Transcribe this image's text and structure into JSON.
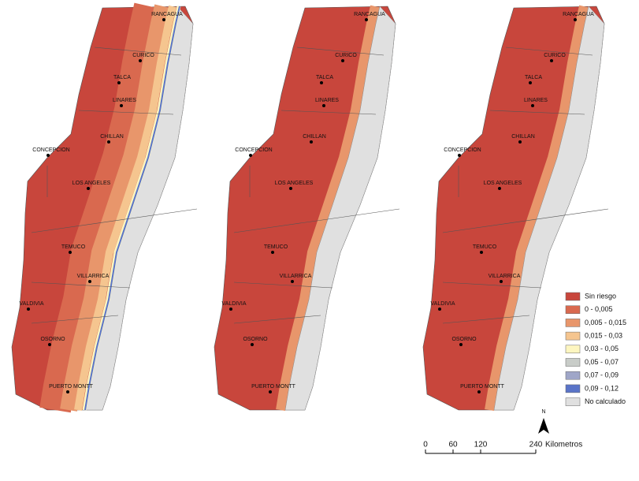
{
  "maps": [
    {
      "cities": [
        "RANCAGUA",
        "CURICO",
        "TALCA",
        "LINARES",
        "CHILLAN",
        "CONCEPCION",
        "LOS ANGELES",
        "TEMUCO",
        "VILLARRICA",
        "VALDIVIA",
        "OSORNO",
        "PUERTO MONTT"
      ]
    },
    {
      "cities": [
        "RANCAGUA",
        "CURICO",
        "TALCA",
        "LINARES",
        "CHILLAN",
        "CONCEPCION",
        "LOS ANGELES",
        "TEMUCO",
        "VILLARRICA",
        "VALDIVIA",
        "OSORNO",
        "PUERTO MONTT"
      ]
    },
    {
      "cities": [
        "RANCAGUA",
        "CURICO",
        "TALCA",
        "LINARES",
        "CHILLAN",
        "CONCEPCION",
        "LOS ANGELES",
        "TEMUCO",
        "VILLARRICA",
        "VALDIVIA",
        "OSORNO",
        "PUERTO MONTT"
      ]
    }
  ],
  "legend": [
    {
      "label": "Sin riesgo",
      "color": "#c8463c"
    },
    {
      "label": "0 - 0,005",
      "color": "#d9694f"
    },
    {
      "label": "0,005 - 0,015",
      "color": "#e8966b"
    },
    {
      "label": "0,015 - 0,03",
      "color": "#f5c58f"
    },
    {
      "label": "0,03 - 0,05",
      "color": "#fdf6c0"
    },
    {
      "label": "0,05 - 0,07",
      "color": "#c8ccc8"
    },
    {
      "label": "0,07 - 0,09",
      "color": "#9fa6c8"
    },
    {
      "label": "0,09 - 0,12",
      "color": "#5a74c8"
    },
    {
      "label": "No calculado",
      "color": "#e0e0e0"
    }
  ],
  "scale": {
    "ticks": [
      0,
      60,
      120,
      240
    ],
    "unit": "Kilometros"
  },
  "north": "N"
}
